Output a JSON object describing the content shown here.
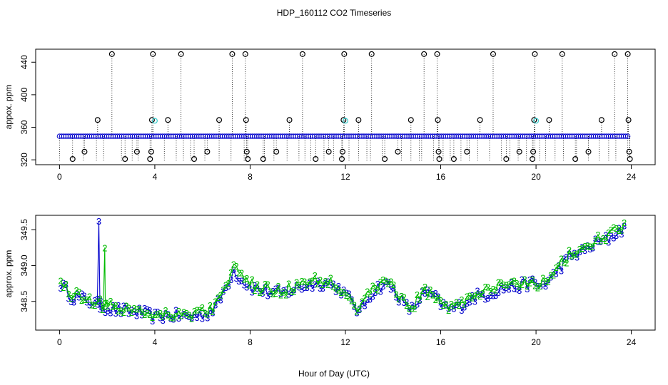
{
  "title": "HDP_160112  CO2 Timeseries",
  "xlabel": "Hour of Day (UTC)",
  "colors": {
    "black": "#000000",
    "blue": "#0000cc",
    "green": "#00bb00",
    "cyan": "#33cccc"
  },
  "chart_data": [
    {
      "type": "scatter",
      "ylabel": "appox. ppm",
      "xlim": [
        -1,
        25
      ],
      "ylim": [
        314,
        456
      ],
      "xticks": [
        0,
        4,
        8,
        12,
        16,
        20,
        24
      ],
      "yticks": [
        320,
        360,
        400,
        440
      ],
      "baseline": 349,
      "sticks": [
        0.0,
        1.0,
        1.55,
        1.85,
        2.6,
        3.05,
        3.3,
        4.4,
        4.9,
        5.2,
        5.5,
        6.1,
        6.7,
        7.2,
        7.75,
        7.85,
        8.6,
        9.0,
        9.55,
        10.05,
        10.3,
        10.55,
        11.1,
        11.5,
        11.85,
        12.15,
        12.55,
        12.9,
        13.05,
        13.55,
        14.35,
        14.75,
        15.1,
        15.2,
        15.7,
        16.1,
        16.4,
        16.85,
        17.2,
        17.55,
        18.05,
        18.55,
        18.9,
        19.25,
        19.6,
        19.95,
        20.15,
        20.4,
        20.8,
        21.15,
        21.7,
        22.2,
        22.65,
        23.05,
        23.35,
        23.85
      ],
      "circles": [
        {
          "x": 0.55,
          "y": 321
        },
        {
          "x": 1.05,
          "y": 330
        },
        {
          "x": 1.6,
          "y": 369
        },
        {
          "x": 2.2,
          "y": 450
        },
        {
          "x": 2.75,
          "y": 321
        },
        {
          "x": 3.25,
          "y": 330
        },
        {
          "x": 3.8,
          "y": 321
        },
        {
          "x": 3.85,
          "y": 330
        },
        {
          "x": 3.88,
          "y": 369
        },
        {
          "x": 3.92,
          "y": 450
        },
        {
          "x": 4.55,
          "y": 369
        },
        {
          "x": 5.1,
          "y": 450
        },
        {
          "x": 5.65,
          "y": 321
        },
        {
          "x": 6.2,
          "y": 330
        },
        {
          "x": 6.7,
          "y": 369
        },
        {
          "x": 7.25,
          "y": 450
        },
        {
          "x": 7.8,
          "y": 450
        },
        {
          "x": 7.83,
          "y": 369
        },
        {
          "x": 7.86,
          "y": 330
        },
        {
          "x": 7.9,
          "y": 321
        },
        {
          "x": 8.55,
          "y": 321
        },
        {
          "x": 9.1,
          "y": 330
        },
        {
          "x": 9.65,
          "y": 369
        },
        {
          "x": 10.2,
          "y": 450
        },
        {
          "x": 10.75,
          "y": 321
        },
        {
          "x": 11.3,
          "y": 330
        },
        {
          "x": 11.85,
          "y": 321
        },
        {
          "x": 11.88,
          "y": 330
        },
        {
          "x": 11.92,
          "y": 369
        },
        {
          "x": 11.95,
          "y": 450
        },
        {
          "x": 12.55,
          "y": 369
        },
        {
          "x": 13.1,
          "y": 450
        },
        {
          "x": 13.65,
          "y": 321
        },
        {
          "x": 14.2,
          "y": 330
        },
        {
          "x": 14.75,
          "y": 369
        },
        {
          "x": 15.3,
          "y": 450
        },
        {
          "x": 15.85,
          "y": 450
        },
        {
          "x": 15.88,
          "y": 369
        },
        {
          "x": 15.91,
          "y": 330
        },
        {
          "x": 15.94,
          "y": 321
        },
        {
          "x": 16.55,
          "y": 321
        },
        {
          "x": 17.1,
          "y": 330
        },
        {
          "x": 17.65,
          "y": 369
        },
        {
          "x": 18.2,
          "y": 450
        },
        {
          "x": 18.75,
          "y": 321
        },
        {
          "x": 19.3,
          "y": 330
        },
        {
          "x": 19.85,
          "y": 321
        },
        {
          "x": 19.88,
          "y": 330
        },
        {
          "x": 19.92,
          "y": 369
        },
        {
          "x": 19.95,
          "y": 450
        },
        {
          "x": 20.55,
          "y": 369
        },
        {
          "x": 21.1,
          "y": 450
        },
        {
          "x": 21.65,
          "y": 321
        },
        {
          "x": 22.2,
          "y": 330
        },
        {
          "x": 22.75,
          "y": 369
        },
        {
          "x": 23.3,
          "y": 450
        },
        {
          "x": 23.85,
          "y": 450
        },
        {
          "x": 23.88,
          "y": 369
        },
        {
          "x": 23.91,
          "y": 330
        },
        {
          "x": 23.94,
          "y": 321
        }
      ],
      "cyan_circles": [
        {
          "x": 4.0,
          "y": 368
        },
        {
          "x": 12.0,
          "y": 368
        },
        {
          "x": 20.0,
          "y": 368
        }
      ]
    },
    {
      "type": "line",
      "ylabel": "approx. ppm",
      "xlim": [
        -1,
        25
      ],
      "ylim": [
        348.1,
        349.7
      ],
      "xticks": [
        0,
        4,
        8,
        12,
        16,
        20,
        24
      ],
      "yticks": [
        348.5,
        349.0,
        349.5
      ],
      "ytick_labels": [
        "348.5",
        "349.0",
        "349.5"
      ],
      "anchors": [
        [
          0,
          348.78
        ],
        [
          0.5,
          348.58
        ],
        [
          1.0,
          348.55
        ],
        [
          1.5,
          348.48
        ],
        [
          2.2,
          348.4
        ],
        [
          2.8,
          348.38
        ],
        [
          3.5,
          348.35
        ],
        [
          4.0,
          348.3
        ],
        [
          4.5,
          348.32
        ],
        [
          5.5,
          348.3
        ],
        [
          6.2,
          348.35
        ],
        [
          6.6,
          348.45
        ],
        [
          6.9,
          348.65
        ],
        [
          7.3,
          348.95
        ],
        [
          7.6,
          348.82
        ],
        [
          8.0,
          348.72
        ],
        [
          8.6,
          348.65
        ],
        [
          9.3,
          348.62
        ],
        [
          10.0,
          348.7
        ],
        [
          10.5,
          348.75
        ],
        [
          11.2,
          348.78
        ],
        [
          11.8,
          348.68
        ],
        [
          12.3,
          348.5
        ],
        [
          12.6,
          348.35
        ],
        [
          13.0,
          348.6
        ],
        [
          13.4,
          348.72
        ],
        [
          13.8,
          348.75
        ],
        [
          14.2,
          348.6
        ],
        [
          14.5,
          348.45
        ],
        [
          14.8,
          348.4
        ],
        [
          15.2,
          348.6
        ],
        [
          15.6,
          348.62
        ],
        [
          16.0,
          348.48
        ],
        [
          16.4,
          348.4
        ],
        [
          16.8,
          348.45
        ],
        [
          17.4,
          348.58
        ],
        [
          18.0,
          348.62
        ],
        [
          18.6,
          348.7
        ],
        [
          19.2,
          348.72
        ],
        [
          19.8,
          348.78
        ],
        [
          20.2,
          348.72
        ],
        [
          20.6,
          348.82
        ],
        [
          21.0,
          349.0
        ],
        [
          21.5,
          349.15
        ],
        [
          22.0,
          349.22
        ],
        [
          22.5,
          349.32
        ],
        [
          23.0,
          349.38
        ],
        [
          23.7,
          349.55
        ]
      ],
      "spikes": [
        {
          "series": "3",
          "x": 1.65,
          "peak": 349.62
        },
        {
          "series": "2",
          "x": 1.9,
          "peak": 349.25
        }
      ],
      "series": [
        {
          "name": "3",
          "label": "3",
          "color": "#0000cc"
        },
        {
          "name": "2",
          "label": "2",
          "color": "#00bb00"
        }
      ]
    }
  ]
}
